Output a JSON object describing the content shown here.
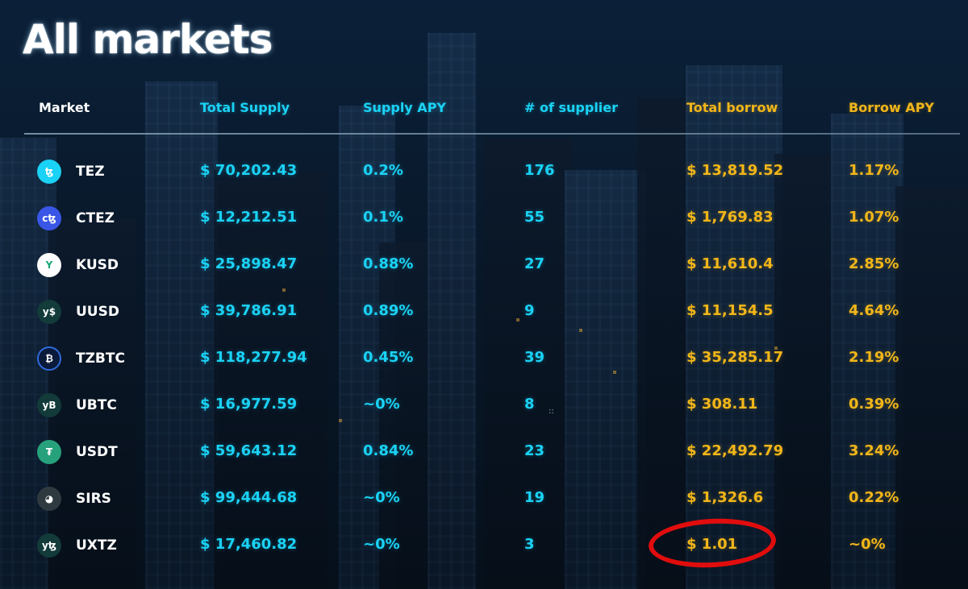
{
  "page": {
    "title": "All markets"
  },
  "table": {
    "headers": {
      "market": "Market",
      "total_supply": "Total Supply",
      "supply_apy": "Supply APY",
      "suppliers": "# of supplier",
      "total_borrow": "Total borrow",
      "borrow_apy": "Borrow APY"
    },
    "rows": [
      {
        "market": "TEZ",
        "icon": "tezos-icon",
        "icon_color": "#1ad2f5",
        "icon_glyph": "ꜩ",
        "total_supply": "$ 70,202.43",
        "supply_apy": "0.2%",
        "suppliers": "176",
        "total_borrow": "$ 13,819.52",
        "borrow_apy": "1.17%"
      },
      {
        "market": "CTEZ",
        "icon": "ctez-icon",
        "icon_color": "#3a56e6",
        "icon_glyph": "cꜩ",
        "total_supply": "$ 12,212.51",
        "supply_apy": "0.1%",
        "suppliers": "55",
        "total_borrow": "$ 1,769.83",
        "borrow_apy": "1.07%"
      },
      {
        "market": "KUSD",
        "icon": "kusd-icon",
        "icon_color": "#ffffff",
        "icon_glyph": "Y",
        "total_supply": "$ 25,898.47",
        "supply_apy": "0.88%",
        "suppliers": "27",
        "total_borrow": "$ 11,610.4",
        "borrow_apy": "2.85%"
      },
      {
        "market": "UUSD",
        "icon": "uusd-icon",
        "icon_color": "#123b3a",
        "icon_glyph": "y$",
        "total_supply": "$ 39,786.91",
        "supply_apy": "0.89%",
        "suppliers": "9",
        "total_borrow": "$ 11,154.5",
        "borrow_apy": "4.64%"
      },
      {
        "market": "TZBTC",
        "icon": "tzbtc-icon",
        "icon_color": "#0a1a3a",
        "icon_glyph": "₿",
        "total_supply": "$ 118,277.94",
        "supply_apy": "0.45%",
        "suppliers": "39",
        "total_borrow": "$ 35,285.17",
        "borrow_apy": "2.19%"
      },
      {
        "market": "UBTC",
        "icon": "ubtc-icon",
        "icon_color": "#123b3a",
        "icon_glyph": "yB",
        "total_supply": "$ 16,977.59",
        "supply_apy": "~0%",
        "suppliers": "8",
        "total_borrow": "$ 308.11",
        "borrow_apy": "0.39%"
      },
      {
        "market": "USDT",
        "icon": "tether-icon",
        "icon_color": "#26a17b",
        "icon_glyph": "₮",
        "total_supply": "$ 59,643.12",
        "supply_apy": "0.84%",
        "suppliers": "23",
        "total_borrow": "$ 22,492.79",
        "borrow_apy": "3.24%"
      },
      {
        "market": "SIRS",
        "icon": "sirs-icon",
        "icon_color": "#2f3a40",
        "icon_glyph": "◕",
        "total_supply": "$ 99,444.68",
        "supply_apy": "~0%",
        "suppliers": "19",
        "total_borrow": "$ 1,326.6",
        "borrow_apy": "0.22%"
      },
      {
        "market": "UXTZ",
        "icon": "uxtz-icon",
        "icon_color": "#123b3a",
        "icon_glyph": "yꜩ",
        "total_supply": "$ 17,460.82",
        "supply_apy": "~0%",
        "suppliers": "3",
        "total_borrow": "$ 1.01",
        "borrow_apy": "~0%"
      }
    ]
  },
  "annotation": {
    "highlight_color": "#e10d0d"
  },
  "colors": {
    "supply_accent": "#1ad2f5",
    "borrow_accent": "#f2b619"
  }
}
